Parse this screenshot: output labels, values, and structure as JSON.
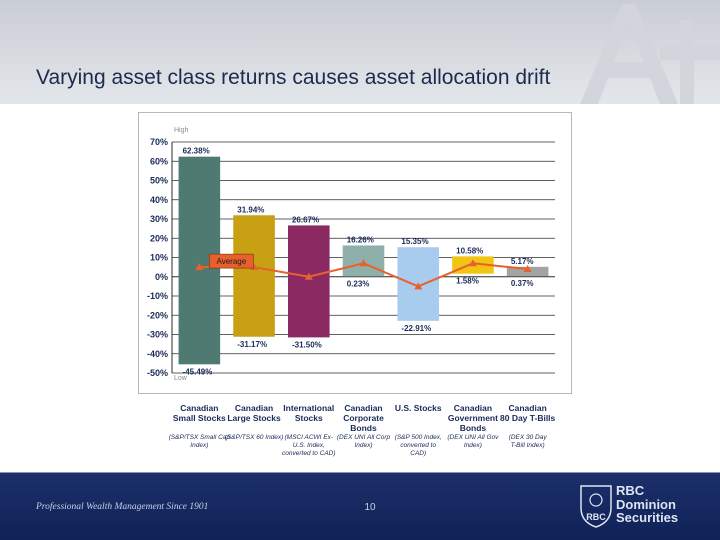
{
  "header": {
    "title": "Varying asset class returns causes asset allocation drift"
  },
  "chart_data": {
    "type": "bar",
    "subtype": "floating-range-with-average-line",
    "ylim": [
      -50,
      70
    ],
    "yticks": [
      "70%",
      "60%",
      "50%",
      "40%",
      "30%",
      "20%",
      "10%",
      "0%",
      "-10%",
      "-20%",
      "-30%",
      "-40%",
      "-50%"
    ],
    "grid": true,
    "high_label": "High",
    "low_label": "Low",
    "average_label": "Average",
    "categories": [
      "Canadian\nSmall Stocks",
      "Canadian\nLarge Stocks",
      "International\nStocks",
      "Canadian\nCorporate\nBonds",
      "U.S. Stocks",
      "Canadian\nGovernment\nBonds",
      "Canadian\n80 Day T-Bills"
    ],
    "indexes": [
      "(S&P/TSX Small Cap\nIndex)",
      "(S&P/TSX 60 Index)",
      "(MSCI ACWI Ex-\nU.S. Index,\nconverted to CAD)",
      "(DEX UNI All Corp\nIndex)",
      "(S&P 500 Index,\nconverted to\nCAD)",
      "(DEX UNI All Gov\nIndex)",
      "(DEX 30 Day\nT-Bill Index)"
    ],
    "high": [
      62.38,
      31.94,
      26.67,
      16.26,
      15.35,
      10.58,
      5.17
    ],
    "low": [
      -45.49,
      -31.17,
      -31.5,
      0.23,
      -22.91,
      1.58,
      0.37
    ],
    "high_labels": [
      "62.38%",
      "31.94%",
      "26.67%",
      "16.26%",
      "15.35%",
      "10.58%",
      "5.17%"
    ],
    "low_labels": [
      "-45.49%",
      "-31.17%",
      "-31.50%",
      "0.23%",
      "-22.91%",
      "1.58%",
      "0.37%"
    ],
    "average": [
      5,
      5,
      0,
      7,
      -5,
      7,
      4
    ],
    "colors": [
      "#4f7a72",
      "#c8a014",
      "#8b2a62",
      "#8fb0aa",
      "#a8ccee",
      "#f2c414",
      "#a3a3a3"
    ],
    "average_color": "#e8612c"
  },
  "footer": {
    "tagline": "Professional Wealth Management Since 1901",
    "page_number": "10",
    "brand": "RBC\nDominion\nSecurities",
    "logo_text": "RBC"
  }
}
